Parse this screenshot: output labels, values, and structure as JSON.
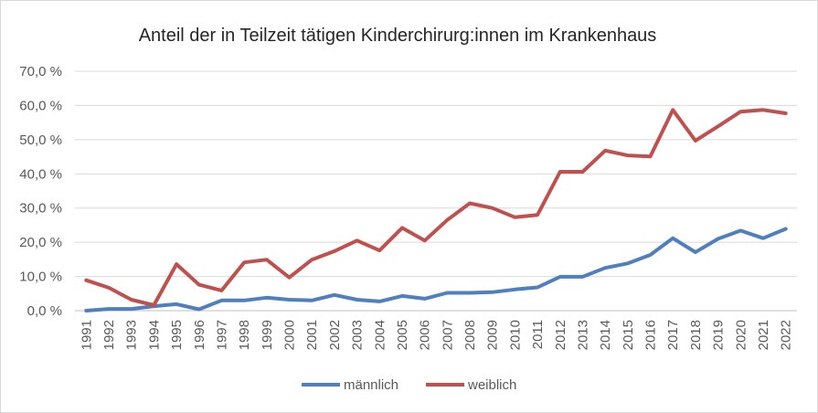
{
  "chart_data": {
    "type": "line",
    "title": "Anteil der in Teilzeit tätigen Kinderchirurg:innen im Krankenhaus",
    "xlabel": "",
    "ylabel": "",
    "ylim": [
      0,
      70
    ],
    "y_ticks": [
      "0,0 %",
      "10,0 %",
      "20,0 %",
      "30,0 %",
      "40,0 %",
      "50,0 %",
      "60,0 %",
      "70,0 %"
    ],
    "grid": true,
    "legend_position": "bottom",
    "categories": [
      "1991",
      "1992",
      "1993",
      "1994",
      "1995",
      "1996",
      "1997",
      "1998",
      "1999",
      "2000",
      "2001",
      "2002",
      "2003",
      "2004",
      "2005",
      "2006",
      "2007",
      "2008",
      "2009",
      "2010",
      "2011",
      "2012",
      "2013",
      "2014",
      "2015",
      "2016",
      "2017",
      "2018",
      "2019",
      "2020",
      "2021",
      "2022"
    ],
    "series": [
      {
        "name": "männlich",
        "color": "#4f7fbf",
        "values": [
          0.0,
          0.5,
          0.5,
          1.3,
          1.9,
          0.4,
          3.0,
          3.0,
          3.8,
          3.2,
          3.0,
          4.6,
          3.2,
          2.7,
          4.3,
          3.5,
          5.2,
          5.2,
          5.4,
          6.2,
          6.8,
          9.9,
          9.9,
          12.5,
          13.8,
          16.3,
          21.2,
          17.1,
          21.0,
          23.4,
          21.2,
          23.9
        ]
      },
      {
        "name": "weiblich",
        "color": "#c0504d",
        "values": [
          8.9,
          6.7,
          3.2,
          1.6,
          13.6,
          7.6,
          5.9,
          14.1,
          14.9,
          9.7,
          14.9,
          17.4,
          20.5,
          17.6,
          24.2,
          20.5,
          26.5,
          31.4,
          30.0,
          27.3,
          28.0,
          40.6,
          40.6,
          46.8,
          45.4,
          45.1,
          58.7,
          49.7,
          53.9,
          58.2,
          58.7,
          57.7
        ]
      }
    ]
  }
}
